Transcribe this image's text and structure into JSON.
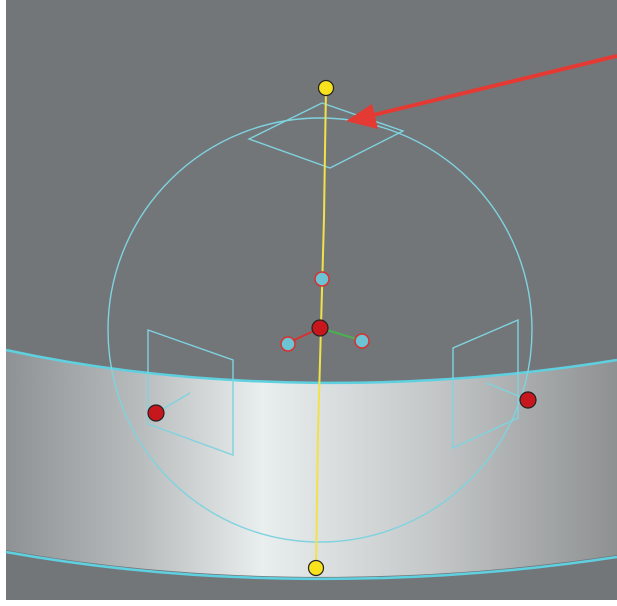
{
  "viewport": {
    "background_color": "#727679",
    "surface_gradient": [
      "#8f9294",
      "#b9bcbd",
      "#e9eeee",
      "#c4c7c8",
      "#8e9192"
    ],
    "surface_edge_color": "#5fd0df",
    "frame_color": "#ffffff"
  },
  "manipulator": {
    "wireframe_color": "#7fd3df",
    "axis_color": "#f2e24a",
    "pole_handle_color": "#f7e21b",
    "equator_handle_color": "#c8161d",
    "center_handle_color": "#c8161d",
    "secondary_handle_fill": "#6cc3d4",
    "secondary_handle_stroke": "#d8312f",
    "axis_stub_colors": [
      "#d8312f",
      "#4caf50"
    ]
  },
  "annotation": {
    "arrow_color": "#e53a33",
    "points_to": "top-plane-gizmo"
  }
}
